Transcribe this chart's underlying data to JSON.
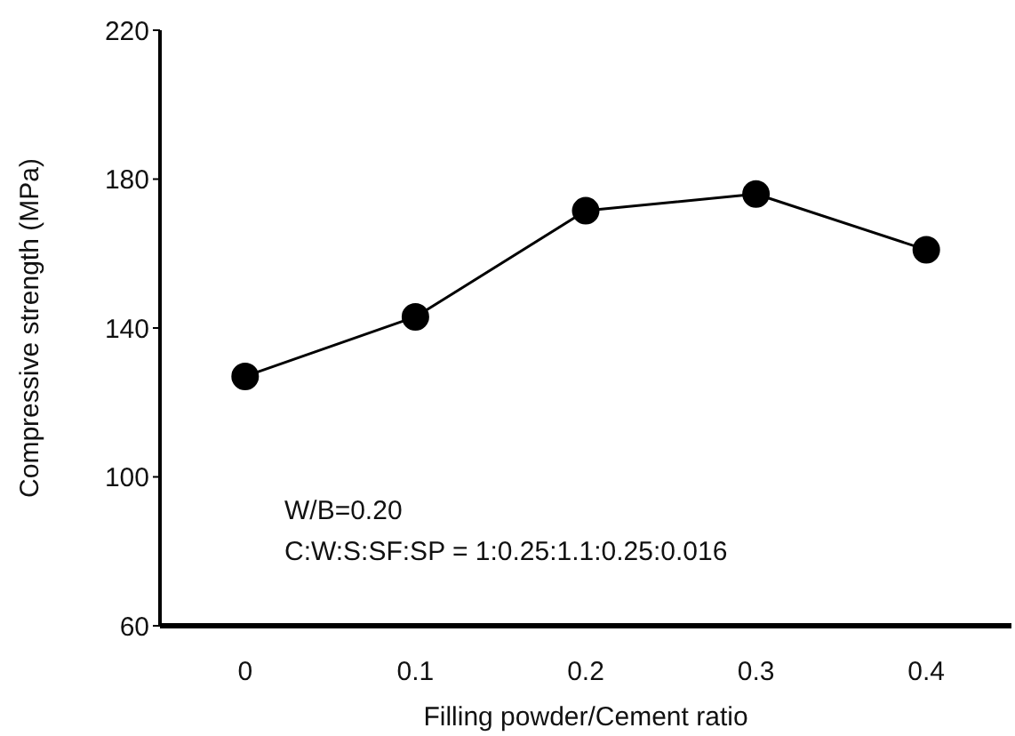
{
  "chart_data": {
    "type": "line",
    "xlabel": "Filling powder/Cement  ratio",
    "ylabel": "Compressive strength (MPa)",
    "x": [
      0,
      0.1,
      0.2,
      0.3,
      0.4
    ],
    "series": [
      {
        "color": "#000000",
        "values": [
          127,
          143,
          171.5,
          176,
          161
        ]
      }
    ],
    "xlim": [
      -0.05,
      0.45
    ],
    "xticks": [
      0,
      0.1,
      0.2,
      0.3,
      0.4
    ],
    "ylim": [
      60,
      220
    ],
    "yticks": [
      60,
      100,
      140,
      180,
      220
    ],
    "marker": "circle",
    "line_style": "solid",
    "grid": false,
    "legend": false,
    "annotations": [
      "W/B=0.20",
      "C:W:S:SF:SP = 1:0.25:1.1:0.25:0.016"
    ]
  }
}
